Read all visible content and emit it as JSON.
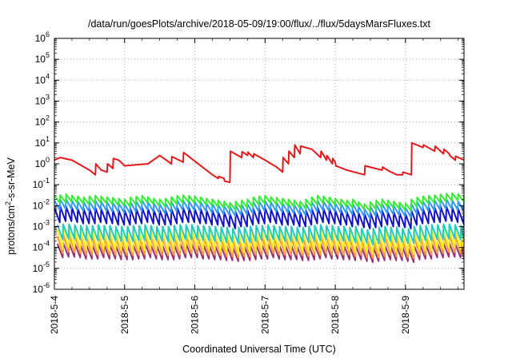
{
  "chart_data": {
    "type": "line",
    "title": "/data/run/goesPlots/archive/2018-05-09/19:00/flux/../flux/5daysMarsFluxes.txt",
    "xlabel": "Coordinated Universal Time (UTC)",
    "ylabel_base": "protons/cm",
    "ylabel_sup": "2",
    "ylabel_rest": "-s-sr-MeV",
    "y_scale": "log",
    "ylim_exp": [
      -6,
      6
    ],
    "xlim": [
      "2018-05-04T00:00",
      "2018-05-09T20:00"
    ],
    "grid": true,
    "grid_style": "dotted",
    "legend": "none",
    "x_ticks": [
      {
        "label": "2018-5-4",
        "t": "2018-05-04T00:00"
      },
      {
        "label": "2018-5-5",
        "t": "2018-05-05T00:00"
      },
      {
        "label": "2018-5-6",
        "t": "2018-05-06T00:00"
      },
      {
        "label": "2018-5-7",
        "t": "2018-05-07T00:00"
      },
      {
        "label": "2018-5-8",
        "t": "2018-05-08T00:00"
      },
      {
        "label": "2018-5-9",
        "t": "2018-05-09T00:00"
      }
    ],
    "y_ticks": [
      {
        "base": "10",
        "exp": "-6"
      },
      {
        "base": "10",
        "exp": "-5"
      },
      {
        "base": "10",
        "exp": "-4"
      },
      {
        "base": "10",
        "exp": "-3"
      },
      {
        "base": "10",
        "exp": "-2"
      },
      {
        "base": "10",
        "exp": "-1"
      },
      {
        "base": "10",
        "exp": "0"
      },
      {
        "base": "10",
        "exp": "1"
      },
      {
        "base": "10",
        "exp": "2"
      },
      {
        "base": "10",
        "exp": "3"
      },
      {
        "base": "10",
        "exp": "4"
      },
      {
        "base": "10",
        "exp": "5"
      },
      {
        "base": "10",
        "exp": "6"
      }
    ],
    "series": [
      {
        "color": "#e41a1c",
        "x": [
          "2018-05-04T00:00",
          "2018-05-04T02:00",
          "2018-05-04T06:00",
          "2018-05-04T12:00",
          "2018-05-04T14:00",
          "2018-05-04T14:10",
          "2018-05-04T16:00",
          "2018-05-04T16:10",
          "2018-05-04T18:00",
          "2018-05-04T18:10",
          "2018-05-04T20:00",
          "2018-05-04T20:10",
          "2018-05-04T22:00",
          "2018-05-05T00:00",
          "2018-05-05T08:00",
          "2018-05-05T12:00",
          "2018-05-05T16:00",
          "2018-05-05T16:10",
          "2018-05-05T20:00",
          "2018-05-05T20:10",
          "2018-05-06T06:00",
          "2018-05-06T08:00",
          "2018-05-06T08:10",
          "2018-05-06T10:00",
          "2018-05-06T10:10",
          "2018-05-06T12:00",
          "2018-05-06T12:10",
          "2018-05-06T16:00",
          "2018-05-06T16:10",
          "2018-05-06T18:00",
          "2018-05-06T18:10",
          "2018-05-06T20:00",
          "2018-05-06T20:10",
          "2018-05-07T00:00",
          "2018-05-07T04:00",
          "2018-05-07T06:00",
          "2018-05-07T06:10",
          "2018-05-07T08:00",
          "2018-05-07T08:10",
          "2018-05-07T10:00",
          "2018-05-07T10:10",
          "2018-05-07T12:00",
          "2018-05-07T12:10",
          "2018-05-07T16:00",
          "2018-05-07T19:00",
          "2018-05-07T19:10",
          "2018-05-07T21:00",
          "2018-05-07T21:10",
          "2018-05-07T23:00",
          "2018-05-07T23:10",
          "2018-05-08T00:00",
          "2018-05-08T00:10",
          "2018-05-08T04:00",
          "2018-05-08T10:00",
          "2018-05-08T10:10",
          "2018-05-08T16:00",
          "2018-05-08T16:10",
          "2018-05-08T19:00",
          "2018-05-08T19:10",
          "2018-05-08T21:00",
          "2018-05-08T21:10",
          "2018-05-08T23:00",
          "2018-05-08T23:10",
          "2018-05-09T02:00",
          "2018-05-09T02:10",
          "2018-05-09T06:00",
          "2018-05-09T06:10",
          "2018-05-09T10:00",
          "2018-05-09T10:10",
          "2018-05-09T13:00",
          "2018-05-09T13:10",
          "2018-05-09T15:00",
          "2018-05-09T15:10",
          "2018-05-09T17:00",
          "2018-05-09T17:10",
          "2018-05-09T20:00"
        ],
        "y": [
          1.5,
          2.0,
          1.5,
          0.5,
          0.3,
          1.0,
          0.5,
          0.5,
          0.4,
          1.0,
          0.6,
          1.8,
          1.5,
          0.8,
          1.0,
          2.5,
          1.0,
          2.2,
          1.2,
          3.5,
          0.3,
          0.2,
          0.25,
          0.2,
          0.15,
          0.13,
          4.0,
          2.0,
          3.8,
          2.5,
          3.6,
          2.0,
          3.0,
          1.5,
          0.7,
          0.4,
          2.0,
          1.0,
          4.0,
          2.0,
          8.0,
          3.0,
          7.0,
          5.0,
          2.0,
          4.0,
          1.5,
          2.5,
          1.0,
          1.8,
          1.2,
          0.8,
          0.5,
          0.3,
          0.8,
          0.5,
          0.7,
          0.4,
          0.4,
          0.3,
          0.3,
          0.3,
          0.4,
          0.3,
          10.0,
          6.0,
          8.0,
          4.0,
          7.0,
          3.0,
          5.0,
          3.0,
          2.5,
          1.5,
          2.3,
          1.5
        ]
      },
      {
        "color": "#33ee33",
        "start": "2018-05-04T00:00",
        "step_hours": 2,
        "dip_factor": 0.45,
        "peaks": [
          0.03,
          0.032,
          0.035,
          0.03,
          0.028,
          0.025,
          0.028,
          0.03,
          0.028,
          0.026,
          0.024,
          0.022,
          0.02,
          0.025,
          0.028,
          0.03,
          0.026,
          0.022,
          0.02,
          0.022,
          0.026,
          0.03,
          0.032,
          0.03,
          0.028,
          0.025,
          0.022,
          0.02,
          0.018,
          0.016,
          0.014,
          0.016,
          0.018,
          0.02,
          0.025,
          0.028,
          0.03,
          0.026,
          0.024,
          0.022,
          0.02,
          0.018,
          0.016,
          0.02,
          0.025,
          0.03,
          0.028,
          0.025,
          0.022,
          0.02,
          0.018,
          0.02,
          0.015,
          0.012,
          0.015,
          0.018,
          0.02,
          0.018,
          0.016,
          0.014,
          0.013,
          0.02,
          0.025,
          0.028,
          0.03,
          0.032,
          0.035,
          0.038,
          0.04,
          0.036,
          0.03,
          0.025
        ]
      },
      {
        "color": "#3399ff",
        "start": "2018-05-04T00:00",
        "step_hours": 2,
        "dip_factor": 0.35,
        "peaks": [
          0.018,
          0.02,
          0.02,
          0.018,
          0.016,
          0.015,
          0.016,
          0.018,
          0.016,
          0.015,
          0.014,
          0.013,
          0.012,
          0.015,
          0.016,
          0.018,
          0.015,
          0.013,
          0.012,
          0.013,
          0.015,
          0.018,
          0.018,
          0.017,
          0.016,
          0.015,
          0.013,
          0.012,
          0.011,
          0.01,
          0.009,
          0.01,
          0.011,
          0.012,
          0.015,
          0.016,
          0.017,
          0.015,
          0.014,
          0.013,
          0.012,
          0.011,
          0.01,
          0.012,
          0.015,
          0.017,
          0.016,
          0.015,
          0.013,
          0.012,
          0.011,
          0.012,
          0.009,
          0.007,
          0.009,
          0.011,
          0.012,
          0.011,
          0.01,
          0.009,
          0.008,
          0.012,
          0.015,
          0.016,
          0.017,
          0.018,
          0.02,
          0.02,
          0.018,
          0.016,
          0.013,
          0.01
        ]
      },
      {
        "color": "#1111cc",
        "start": "2018-05-04T00:00",
        "step_hours": 2,
        "dip_factor": 0.2,
        "peaks": [
          0.008,
          0.009,
          0.009,
          0.008,
          0.007,
          0.007,
          0.007,
          0.008,
          0.007,
          0.007,
          0.006,
          0.006,
          0.006,
          0.007,
          0.007,
          0.008,
          0.007,
          0.006,
          0.006,
          0.006,
          0.007,
          0.008,
          0.008,
          0.008,
          0.007,
          0.007,
          0.006,
          0.006,
          0.005,
          0.005,
          0.004,
          0.005,
          0.005,
          0.006,
          0.007,
          0.007,
          0.008,
          0.007,
          0.006,
          0.006,
          0.006,
          0.005,
          0.005,
          0.006,
          0.007,
          0.008,
          0.007,
          0.007,
          0.006,
          0.006,
          0.005,
          0.006,
          0.0045,
          0.004,
          0.0045,
          0.005,
          0.006,
          0.005,
          0.005,
          0.0045,
          0.004,
          0.006,
          0.007,
          0.007,
          0.008,
          0.008,
          0.009,
          0.009,
          0.008,
          0.007,
          0.006,
          0.005
        ]
      },
      {
        "color": "#22ccbb",
        "start": "2018-05-04T01:00",
        "step_hours": 2,
        "dip_factor": 0.2,
        "peaks": [
          0.0012,
          0.0013,
          0.0013,
          0.0012,
          0.0011,
          0.0011,
          0.0011,
          0.0012,
          0.0011,
          0.0011,
          0.001,
          0.001,
          0.001,
          0.0011,
          0.0011,
          0.0012,
          0.0011,
          0.001,
          0.001,
          0.001,
          0.0011,
          0.0012,
          0.0012,
          0.0012,
          0.0011,
          0.0011,
          0.001,
          0.001,
          0.0009,
          0.0009,
          0.0008,
          0.0009,
          0.0009,
          0.001,
          0.0011,
          0.0011,
          0.0012,
          0.0011,
          0.001,
          0.001,
          0.001,
          0.0009,
          0.0009,
          0.001,
          0.0011,
          0.0012,
          0.0011,
          0.0011,
          0.001,
          0.001,
          0.0009,
          0.001,
          0.0008,
          0.0007,
          0.0008,
          0.0009,
          0.001,
          0.0009,
          0.0009,
          0.0008,
          0.0008,
          0.001,
          0.0011,
          0.0011,
          0.0012,
          0.0012,
          0.0013,
          0.0013,
          0.0012,
          0.0011,
          0.001,
          0.0009
        ]
      },
      {
        "color": "#ffee22",
        "start": "2018-05-04T01:00",
        "step_hours": 2,
        "dip_factor": 0.12,
        "peaks": [
          0.0007,
          0.0008,
          0.0008,
          0.0007,
          0.0006,
          0.0006,
          0.0006,
          0.0007,
          0.0006,
          0.0006,
          0.0006,
          0.0005,
          0.0005,
          0.0006,
          0.0006,
          0.0007,
          0.0006,
          0.0006,
          0.0005,
          0.0006,
          0.0006,
          0.0007,
          0.0007,
          0.0007,
          0.0006,
          0.0006,
          0.0006,
          0.0005,
          0.0005,
          0.0005,
          0.0004,
          0.0005,
          0.0005,
          0.0006,
          0.0006,
          0.0006,
          0.0007,
          0.0006,
          0.0006,
          0.0006,
          0.0006,
          0.0005,
          0.0005,
          0.0006,
          0.0006,
          0.0007,
          0.0006,
          0.0006,
          0.0006,
          0.0006,
          0.0005,
          0.0006,
          0.00045,
          0.0004,
          0.00045,
          0.0005,
          0.0006,
          0.0005,
          0.0005,
          0.00045,
          0.0004,
          0.0006,
          0.0006,
          0.0006,
          0.0007,
          0.0007,
          0.0008,
          0.0008,
          0.0007,
          0.0006,
          0.0006,
          0.0005
        ]
      },
      {
        "color": "#ff9933",
        "start": "2018-05-04T01:00",
        "step_hours": 2,
        "dip_factor": 0.15,
        "peaks": [
          0.00035,
          0.0004,
          0.0004,
          0.00035,
          0.0003,
          0.0003,
          0.0003,
          0.00035,
          0.0003,
          0.0003,
          0.0003,
          0.00028,
          0.00028,
          0.0003,
          0.0003,
          0.00035,
          0.0003,
          0.0003,
          0.00028,
          0.0003,
          0.0003,
          0.00035,
          0.00035,
          0.00035,
          0.0003,
          0.0003,
          0.0003,
          0.00028,
          0.00025,
          0.00025,
          0.00022,
          0.00025,
          0.00025,
          0.0003,
          0.0003,
          0.0003,
          0.00035,
          0.0003,
          0.0003,
          0.0003,
          0.0003,
          0.00028,
          0.00025,
          0.0003,
          0.0003,
          0.00035,
          0.0003,
          0.0003,
          0.0003,
          0.0003,
          0.00025,
          0.0003,
          0.00022,
          0.0002,
          0.00022,
          0.00025,
          0.0003,
          0.00025,
          0.00025,
          0.00022,
          0.0002,
          0.0003,
          0.0003,
          0.0003,
          0.00035,
          0.00035,
          0.0004,
          0.0004,
          0.00035,
          0.0003,
          0.0003,
          0.00025
        ]
      },
      {
        "color": "#993377",
        "start": "2018-05-04T01:00",
        "step_hours": 2,
        "dip_factor": 0.22,
        "peaks": [
          0.00015,
          0.00016,
          0.00016,
          0.00015,
          0.00013,
          0.00013,
          0.00013,
          0.00015,
          0.00013,
          0.00013,
          0.00012,
          0.00012,
          0.00012,
          0.00013,
          0.00013,
          0.00015,
          0.00013,
          0.00012,
          0.00012,
          0.00012,
          0.00013,
          0.00015,
          0.00015,
          0.00015,
          0.00013,
          0.00013,
          0.00012,
          0.00012,
          0.00011,
          0.00011,
          0.0001,
          0.00011,
          0.00011,
          0.00012,
          0.00013,
          0.00013,
          0.00015,
          0.00013,
          0.00012,
          0.00012,
          0.00012,
          0.00011,
          0.00011,
          0.00012,
          0.00013,
          0.00015,
          0.00013,
          0.00013,
          0.00012,
          0.00012,
          0.00011,
          0.00012,
          0.0001,
          9e-05,
          0.0001,
          0.00011,
          0.00012,
          0.00011,
          0.00011,
          0.0001,
          9e-05,
          0.00012,
          0.00013,
          0.00013,
          0.00015,
          0.00015,
          0.00016,
          0.00016,
          0.00015,
          0.00013,
          0.00012,
          0.00011
        ]
      }
    ]
  }
}
